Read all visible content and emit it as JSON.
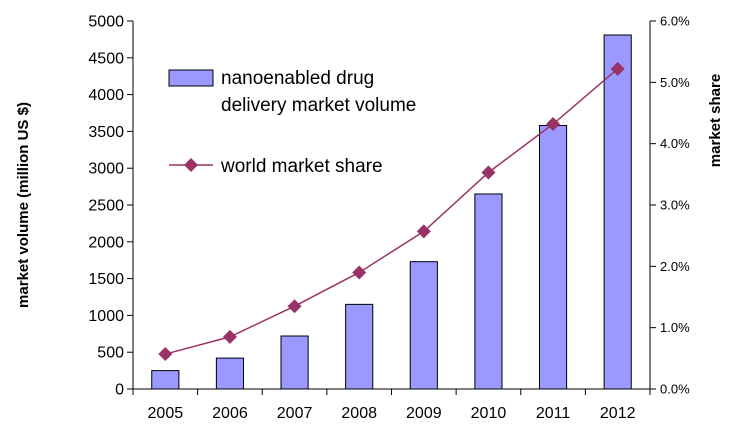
{
  "chart_data": {
    "type": "bar",
    "categories": [
      "2005",
      "2006",
      "2007",
      "2008",
      "2009",
      "2010",
      "2011",
      "2012"
    ],
    "series": [
      {
        "name": "nanoenabled drug delivery market volume",
        "legend_lines": [
          "nanoenabled drug",
          "delivery market volume"
        ],
        "type": "bar",
        "axis": "left",
        "color": "#9999ff",
        "values": [
          250,
          420,
          720,
          1150,
          1730,
          2650,
          3580,
          4810
        ]
      },
      {
        "name": "world market share",
        "type": "line",
        "axis": "right",
        "color": "#993366",
        "marker": "diamond",
        "values": [
          0.57,
          0.85,
          1.35,
          1.9,
          2.57,
          3.53,
          4.32,
          5.22
        ]
      }
    ],
    "ylabel": "market volume (million US $)",
    "ylabel_right": "market share",
    "ylim": [
      0,
      5000
    ],
    "ylim_right": [
      0,
      6
    ],
    "yticks": [
      0,
      500,
      1000,
      1500,
      2000,
      2500,
      3000,
      3500,
      4000,
      4500,
      5000
    ],
    "yticks_right": [
      "0.0%",
      "1.0%",
      "2.0%",
      "3.0%",
      "4.0%",
      "5.0%",
      "6.0%"
    ],
    "legend_position": "top-left",
    "grid": false
  }
}
